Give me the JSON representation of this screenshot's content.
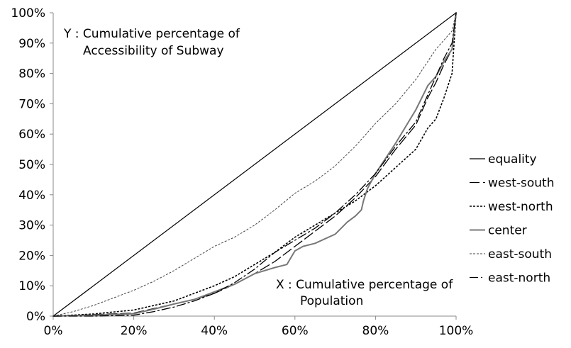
{
  "chart_data": {
    "type": "line",
    "title": "",
    "xlabel": "",
    "ylabel": "",
    "xlim": [
      0,
      100
    ],
    "ylim": [
      0,
      100
    ],
    "x_ticks": [
      "0%",
      "20%",
      "40%",
      "60%",
      "80%",
      "100%"
    ],
    "y_ticks": [
      "0%",
      "10%",
      "20%",
      "30%",
      "40%",
      "50%",
      "60%",
      "70%",
      "80%",
      "90%",
      "100%"
    ],
    "grid": false,
    "legend_position": "right",
    "annotations": [
      {
        "id": "y",
        "lines": [
          "Y : Cumulative percentage of",
          "Accessibility of Subway"
        ]
      },
      {
        "id": "x",
        "lines": [
          "X : Cumulative percentage of",
          "Population"
        ]
      }
    ],
    "series": [
      {
        "name": "equality",
        "color": "#000000",
        "style": "solid",
        "width": 1.2,
        "x": [
          0,
          100
        ],
        "y": [
          0,
          100
        ]
      },
      {
        "name": "west-south",
        "color": "#000000",
        "style": "longdash",
        "width": 1.3,
        "x": [
          0,
          10,
          20,
          25,
          30,
          35,
          40,
          45,
          50,
          55,
          60,
          65,
          70,
          75,
          80,
          85,
          90,
          93,
          95,
          97,
          99,
          100
        ],
        "y": [
          0,
          0.5,
          1,
          2.5,
          4,
          5.5,
          7.5,
          10.5,
          14,
          18,
          23,
          28,
          33,
          39,
          46,
          55,
          63,
          72,
          77,
          83,
          88,
          100
        ]
      },
      {
        "name": "west-north",
        "color": "#000000",
        "style": "dotted",
        "width": 1.6,
        "x": [
          0,
          10,
          20,
          25,
          30,
          35,
          40,
          45,
          50,
          55,
          60,
          65,
          70,
          75,
          80,
          85,
          90,
          93,
          95,
          97,
          99,
          100
        ],
        "y": [
          0,
          0.7,
          2,
          3.5,
          5,
          7.5,
          10,
          13,
          17,
          21,
          26,
          30,
          34,
          38,
          43,
          49,
          55,
          62,
          65,
          72,
          80,
          100
        ]
      },
      {
        "name": "center",
        "color": "#777777",
        "style": "solid",
        "width": 2.0,
        "x": [
          0,
          10,
          20,
          25,
          30,
          35,
          40,
          45,
          50,
          55,
          58,
          60,
          62,
          65,
          70,
          73,
          75,
          76.5,
          77,
          78,
          80,
          85,
          90,
          93,
          95,
          97,
          99,
          100
        ],
        "y": [
          0,
          0.3,
          0.8,
          2.3,
          4,
          5.5,
          8,
          10.5,
          14,
          16,
          17,
          21.5,
          23,
          24,
          27,
          31,
          33,
          35,
          38,
          42,
          47,
          57,
          68,
          76,
          79,
          84,
          88,
          100
        ]
      },
      {
        "name": "east-south",
        "color": "#444444",
        "style": "dotted",
        "width": 1.0,
        "x": [
          0,
          5,
          10,
          15,
          20,
          25,
          30,
          35,
          40,
          45,
          50,
          55,
          60,
          65,
          70,
          75,
          80,
          85,
          90,
          93,
          95,
          97,
          99,
          100
        ],
        "y": [
          0,
          1.5,
          3.5,
          6,
          8.5,
          11.5,
          15,
          19,
          23,
          26,
          30,
          35,
          40.5,
          44.5,
          49.5,
          56,
          63.5,
          70,
          78,
          84,
          88,
          91,
          94,
          100
        ]
      },
      {
        "name": "east-north",
        "color": "#000000",
        "style": "dashdot",
        "width": 1.3,
        "x": [
          0,
          10,
          20,
          25,
          30,
          35,
          40,
          45,
          50,
          55,
          60,
          65,
          70,
          75,
          80,
          85,
          90,
          93,
          95,
          97,
          99,
          100
        ],
        "y": [
          0,
          0,
          0.3,
          1.5,
          3,
          5,
          7.5,
          11,
          15.5,
          21,
          25,
          29,
          34,
          40,
          47,
          56,
          64,
          73,
          79,
          85,
          90,
          100
        ]
      }
    ]
  }
}
